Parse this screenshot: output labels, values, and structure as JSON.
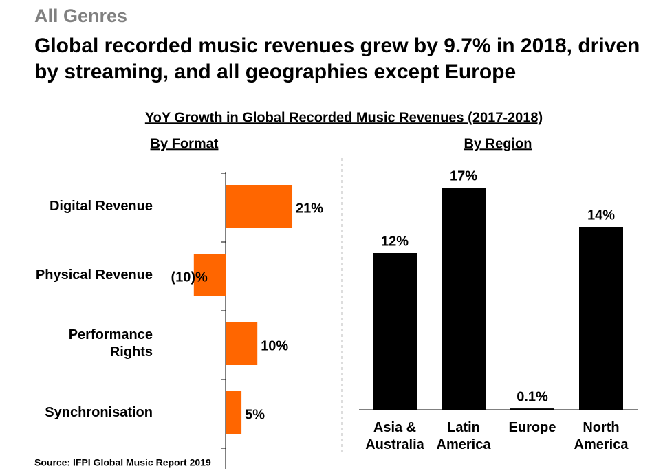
{
  "header": {
    "kicker": "All Genres",
    "title": "Global recorded music revenues grew by 9.7% in 2018, driven by streaming, and all geographies except Europe",
    "chart_heading": "YoY Growth in Global Recorded Music Revenues (2017-2018)",
    "source": "Source: IFPI Global Music Report 2019"
  },
  "chart_data": [
    {
      "type": "hbar",
      "title": "By Format",
      "categories": [
        "Digital Revenue",
        "Physical Revenue",
        "Performance Rights",
        "Synchronisation"
      ],
      "values": [
        21,
        -10,
        10,
        5
      ],
      "value_labels": [
        "21%",
        "(10)%",
        "10%",
        "5%"
      ],
      "color": "#ff6600"
    },
    {
      "type": "bar",
      "title": "By Region",
      "categories": [
        "Asia & Australia",
        "Latin America",
        "Europe",
        "North America"
      ],
      "values": [
        12,
        17,
        0.1,
        14
      ],
      "value_labels": [
        "12%",
        "17%",
        "0.1%",
        "14%"
      ],
      "color": "#000000"
    }
  ]
}
